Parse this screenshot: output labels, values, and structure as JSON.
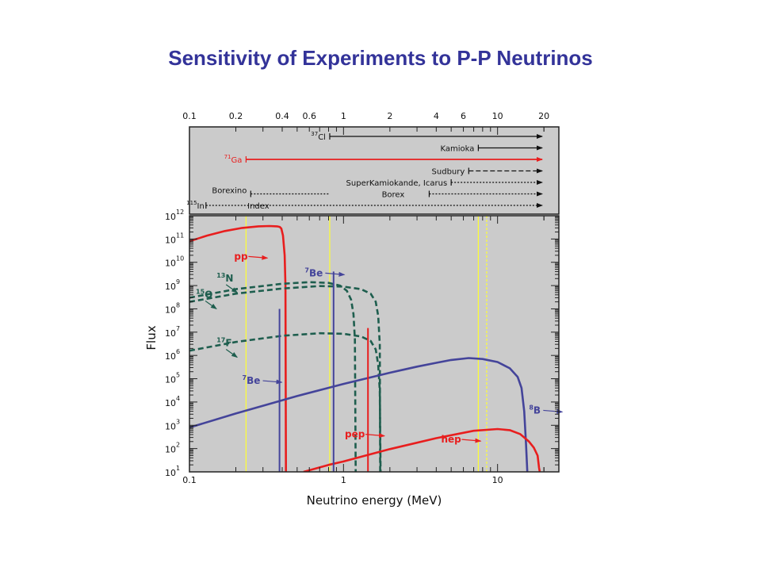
{
  "title": "Sensitivity of Experiments to P-P Neutrinos",
  "colors": {
    "panel_bg": "#cbcbcb",
    "frame": "#222222",
    "red": "#e81e1e",
    "blue": "#44449a",
    "green": "#1e5e4e",
    "yellow": "#ffff33",
    "black": "#111111"
  },
  "chart_data": {
    "type": "line",
    "xscale": "log",
    "yscale": "log",
    "xlim": [
      0.1,
      25
    ],
    "ylim": [
      10,
      1000000000000
    ],
    "xlabel": "Neutrino energy (MeV)",
    "ylabel": "Flux",
    "bottom_x_ticks": [
      "0.1",
      "1",
      "10"
    ],
    "top_x_ticks": [
      "0.1",
      "0.2",
      "0.4",
      "0.6",
      "1",
      "2",
      "4",
      "6",
      "10",
      "20"
    ],
    "y_tick_exponents": [
      "12",
      "11",
      "10",
      "9",
      "8",
      "7",
      "6",
      "5",
      "4",
      "3",
      "2",
      "1"
    ],
    "y_tick_base": "10",
    "experiments": [
      {
        "label": "Cl",
        "sup": "37",
        "threshold": 0.814,
        "style": "solid",
        "color": "black",
        "row": 1
      },
      {
        "label": "Kamioka",
        "sup": "",
        "threshold": 7.5,
        "style": "solid",
        "color": "black",
        "row": 2
      },
      {
        "label": "Ga",
        "sup": "71",
        "threshold": 0.233,
        "style": "solid",
        "color": "red",
        "row": 3
      },
      {
        "label": "Sudbury",
        "sup": "",
        "threshold": 6.5,
        "style": "dashed",
        "color": "black",
        "row": 4
      },
      {
        "label": "SuperKamiokande, Icarus",
        "sup": "",
        "threshold": 5.0,
        "style": "dotted",
        "color": "black",
        "row": 5
      },
      {
        "label": "Borexino",
        "sup": "",
        "threshold": 0.25,
        "end": 0.8,
        "style": "dotted",
        "color": "black",
        "row": 6
      },
      {
        "label": "Borex",
        "sup": "",
        "threshold": 3.6,
        "style": "dotted",
        "color": "black",
        "row": 6
      },
      {
        "label": "In",
        "sup": "115",
        "threshold": 0.128,
        "style": "dotted",
        "color": "black",
        "row": 7
      },
      {
        "label": "Index",
        "sup": "",
        "threshold": 0.128,
        "style": "none",
        "color": "black",
        "row": 7
      }
    ],
    "threshold_lines": [
      {
        "x": 0.233,
        "style": "solid"
      },
      {
        "x": 0.814,
        "style": "solid"
      },
      {
        "x": 7.5,
        "style": "solid"
      },
      {
        "x": 8.5,
        "style": "dashed"
      }
    ],
    "series": [
      {
        "name": "pp",
        "color": "red",
        "style": "solid",
        "x": [
          0.1,
          0.13,
          0.17,
          0.22,
          0.28,
          0.33,
          0.37,
          0.385,
          0.395,
          0.405,
          0.415,
          0.42,
          0.423
        ],
        "y": [
          80000000000,
          140000000000,
          220000000000,
          300000000000,
          350000000000,
          360000000000,
          350000000000,
          330000000000,
          280000000000,
          140000000000,
          20000000000,
          1000000000,
          10
        ]
      },
      {
        "name": "13N",
        "color": "green",
        "style": "dashed",
        "x": [
          0.1,
          0.2,
          0.4,
          0.6,
          0.8,
          0.95,
          1.05,
          1.12,
          1.16,
          1.185,
          1.2
        ],
        "y": [
          300000000,
          700000000,
          1200000000,
          1400000000,
          1300000000,
          1000000000,
          600000000,
          250000000,
          60000000,
          5000000,
          10
        ]
      },
      {
        "name": "15O",
        "color": "green",
        "style": "dashed",
        "x": [
          0.1,
          0.2,
          0.4,
          0.7,
          1.0,
          1.3,
          1.5,
          1.62,
          1.68,
          1.72,
          1.73
        ],
        "y": [
          200000000,
          450000000,
          750000000,
          950000000,
          900000000,
          700000000,
          450000000,
          200000000,
          50000000,
          3000000,
          10
        ]
      },
      {
        "name": "17F",
        "color": "green",
        "style": "dashed",
        "x": [
          0.1,
          0.2,
          0.4,
          0.7,
          1.0,
          1.3,
          1.5,
          1.62,
          1.68,
          1.72,
          1.74
        ],
        "y": [
          1600000,
          3800000,
          7000000,
          9000000,
          8500000,
          6500000,
          4200000,
          1800000,
          400000,
          30000,
          10
        ]
      },
      {
        "name": "8B",
        "color": "blue",
        "style": "solid",
        "x": [
          0.1,
          0.2,
          0.5,
          1.0,
          2.0,
          3.0,
          4.0,
          5.0,
          6.5,
          8.0,
          10.0,
          12.0,
          13.5,
          14.3,
          14.9,
          15.3,
          15.6
        ],
        "y": [
          800,
          3200,
          18000,
          60000,
          180000,
          330000,
          480000,
          640000,
          770000,
          700000,
          520000,
          280000,
          120000,
          40000,
          4000,
          150,
          10
        ]
      },
      {
        "name": "hep",
        "color": "red",
        "style": "solid",
        "x": [
          0.55,
          0.8,
          1.0,
          2.0,
          4.0,
          7.0,
          10.0,
          12.0,
          14.0,
          16.0,
          17.2,
          18.2,
          18.6,
          18.8
        ],
        "y": [
          10,
          20,
          28,
          95,
          280,
          580,
          690,
          620,
          420,
          200,
          110,
          50,
          15,
          10
        ]
      },
      {
        "name": "7Be (0.384 MeV)",
        "color": "blue",
        "style": "line",
        "x": [
          0.384,
          0.384
        ],
        "y": [
          10,
          100000000
        ]
      },
      {
        "name": "7Be (0.862 MeV)",
        "color": "blue",
        "style": "line",
        "x": [
          0.862,
          0.862
        ],
        "y": [
          10,
          4000000000
        ]
      },
      {
        "name": "pep",
        "color": "red",
        "style": "line",
        "x": [
          1.442,
          1.442
        ],
        "y": [
          10,
          15000000
        ]
      }
    ],
    "annotations": [
      {
        "text": "pp",
        "color": "red",
        "arrow": "right",
        "x_at": 0.195,
        "y_at": 13000000000
      },
      {
        "text": "Be",
        "sup": "7",
        "color": "blue",
        "arrow": "right",
        "x_at": 0.56,
        "y_at": 2500000000
      },
      {
        "text": "N",
        "sup": "13",
        "color": "green",
        "arrow": "down-right",
        "x_at": 0.15,
        "y_at": 1500000000
      },
      {
        "text": "O",
        "sup": "15",
        "color": "green",
        "arrow": "down-right",
        "x_at": 0.11,
        "y_at": 300000000
      },
      {
        "text": "F",
        "sup": "17",
        "color": "green",
        "arrow": "down-right",
        "x_at": 0.15,
        "y_at": 2500000
      },
      {
        "text": "Be",
        "sup": "7",
        "color": "blue",
        "arrow": "right",
        "x_at": 0.22,
        "y_at": 60000
      },
      {
        "text": "B",
        "sup": "8",
        "color": "blue",
        "arrow": "right",
        "x_at": 16,
        "y_at": 3200
      },
      {
        "text": "pep",
        "color": "red",
        "arrow": "right",
        "x_at": 1.02,
        "y_at": 300
      },
      {
        "text": "hep",
        "color": "red",
        "arrow": "right",
        "x_at": 4.3,
        "y_at": 180
      }
    ]
  }
}
